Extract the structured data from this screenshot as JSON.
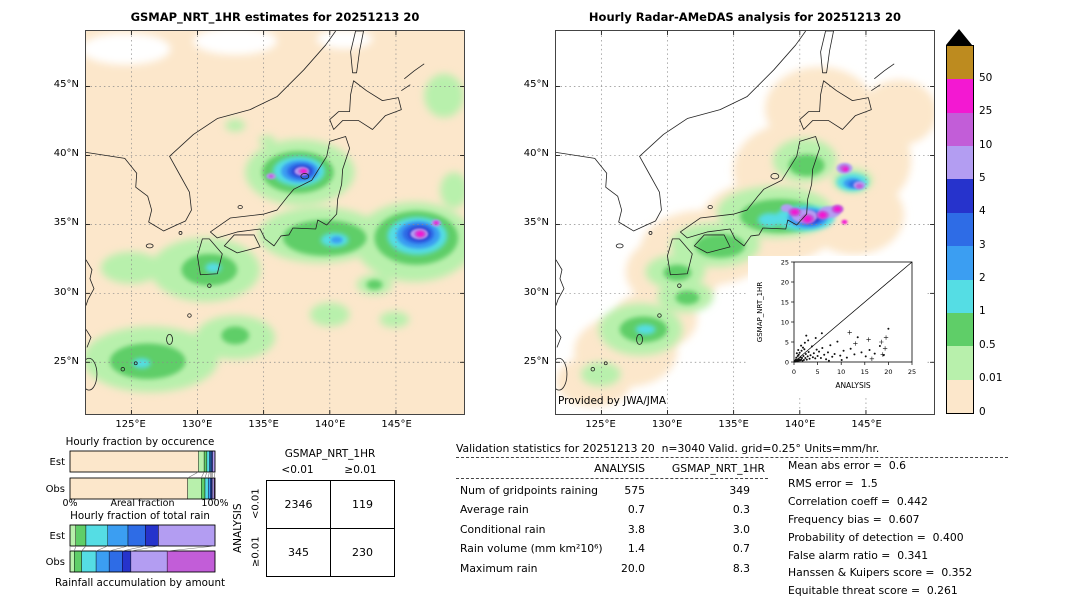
{
  "left_map": {
    "title": "GSMAP_NRT_1HR estimates for 20251213 20",
    "lat_ticks": [
      "45°N",
      "40°N",
      "35°N",
      "30°N",
      "25°N"
    ],
    "lon_ticks": [
      "125°E",
      "130°E",
      "135°E",
      "140°E",
      "145°E"
    ]
  },
  "right_map": {
    "title": "Hourly Radar-AMeDAS analysis for 20251213 20",
    "lat_ticks": [
      "45°N",
      "40°N",
      "35°N",
      "30°N",
      "25°N"
    ],
    "lon_ticks": [
      "125°E",
      "130°E",
      "135°E",
      "140°E",
      "145°E"
    ],
    "credit": "Provided by JWA/JMA"
  },
  "colorbar": {
    "labels": [
      "50",
      "25",
      "10",
      "5",
      "4",
      "3",
      "2",
      "1",
      "0.5",
      "0.01",
      "0"
    ],
    "colors_top_to_bottom": [
      "#bd8b1f",
      "#f318d2",
      "#c25dd8",
      "#b39df2",
      "#2633cc",
      "#2e6ce6",
      "#3b9ef2",
      "#55dde4",
      "#5fce68",
      "#b8f0ac",
      "#fce7cb"
    ],
    "over_arrow_color": "#000000",
    "units": "mm/hr"
  },
  "chart_data": [
    {
      "type": "scatter",
      "title": "GSMAP_NRT_1HR vs ANALYSIS inset",
      "xlabel": "ANALYSIS",
      "ylabel": "GSMAP_NRT_1HR",
      "xlim": [
        0,
        25
      ],
      "ylim": [
        0,
        25
      ],
      "xticks": [
        "0",
        "5",
        "10",
        "15",
        "20",
        "25"
      ],
      "yticks": [
        "0",
        "5",
        "10",
        "15",
        "20",
        "25"
      ],
      "identity_line": true,
      "dot_points": [
        [
          0.1,
          0.1
        ],
        [
          0.2,
          0.3
        ],
        [
          0.3,
          0.1
        ],
        [
          0.4,
          0.6
        ],
        [
          0.5,
          0.2
        ],
        [
          0.5,
          1.1
        ],
        [
          0.6,
          0.4
        ],
        [
          0.7,
          0.2
        ],
        [
          0.8,
          1.5
        ],
        [
          0.9,
          0.5
        ],
        [
          1.0,
          0.3
        ],
        [
          1.0,
          1.8
        ],
        [
          1.1,
          0.7
        ],
        [
          1.2,
          2.3
        ],
        [
          1.3,
          0.4
        ],
        [
          1.4,
          1.2
        ],
        [
          1.5,
          0.6
        ],
        [
          1.6,
          2.8
        ],
        [
          1.7,
          1.0
        ],
        [
          1.8,
          0.3
        ],
        [
          2.0,
          1.5
        ],
        [
          2.1,
          0.5
        ],
        [
          2.2,
          3.2
        ],
        [
          2.4,
          1.0
        ],
        [
          2.5,
          2.0
        ],
        [
          2.7,
          0.6
        ],
        [
          2.9,
          1.4
        ],
        [
          3.1,
          2.5
        ],
        [
          3.3,
          0.8
        ],
        [
          3.5,
          1.7
        ],
        [
          3.8,
          3.9
        ],
        [
          4.0,
          1.2
        ],
        [
          4.2,
          2.2
        ],
        [
          4.5,
          0.9
        ],
        [
          4.8,
          3.1
        ],
        [
          5.0,
          1.5
        ],
        [
          5.3,
          2.6
        ],
        [
          5.7,
          1.0
        ],
        [
          6.0,
          3.5
        ],
        [
          6.4,
          1.8
        ],
        [
          6.8,
          0.7
        ],
        [
          7.2,
          2.4
        ],
        [
          7.7,
          4.2
        ],
        [
          8.1,
          1.3
        ],
        [
          8.6,
          2.0
        ],
        [
          9.2,
          5.1
        ],
        [
          9.8,
          1.6
        ],
        [
          10.5,
          2.8
        ],
        [
          11.2,
          1.1
        ],
        [
          12.0,
          3.3
        ],
        [
          12.8,
          1.9
        ],
        [
          13.5,
          6.2
        ],
        [
          14.3,
          2.4
        ],
        [
          15.2,
          1.4
        ],
        [
          16.0,
          3.0
        ],
        [
          17.1,
          2.1
        ],
        [
          18.2,
          4.0
        ],
        [
          19.0,
          1.7
        ],
        [
          20.0,
          8.3
        ],
        [
          2.3,
          4.8
        ],
        [
          1.9,
          3.6
        ],
        [
          0.6,
          2.2
        ],
        [
          3.0,
          5.4
        ],
        [
          4.6,
          6.0
        ],
        [
          1.5,
          4.1
        ],
        [
          0.9,
          3.0
        ],
        [
          5.9,
          7.2
        ],
        [
          2.6,
          6.6
        ],
        [
          7.4,
          0.3
        ],
        [
          10.1,
          0.5
        ]
      ],
      "plus_points": [
        [
          13.0,
          4.6
        ],
        [
          15.8,
          5.6
        ],
        [
          18.5,
          5.0
        ],
        [
          19.5,
          6.1
        ],
        [
          18.8,
          1.9
        ],
        [
          16.5,
          0.8
        ],
        [
          19.3,
          3.4
        ],
        [
          11.8,
          7.4
        ]
      ]
    },
    {
      "type": "bar",
      "subtype": "stacked-horizontal-percent",
      "title": "Hourly fraction by occurence",
      "xlabel": "Areal fraction",
      "x_min_label": "0%",
      "x_max_label": "100%",
      "categories": [
        "Est",
        "Obs"
      ],
      "bins": [
        "0-0.01",
        "0.01-0.5",
        "0.5-1",
        "1-2",
        "2-3",
        "3-4",
        "4-5",
        "5-10",
        "10-25",
        "25-50",
        "50+"
      ],
      "series": [
        {
          "name": "Est",
          "values": [
            88.5,
            4.0,
            1.9,
            1.7,
            1.0,
            0.7,
            0.5,
            1.7,
            0,
            0,
            0
          ]
        },
        {
          "name": "Obs",
          "values": [
            81.1,
            9.4,
            2.6,
            2.2,
            1.4,
            0.9,
            0.5,
            1.3,
            0.6,
            0,
            0
          ]
        }
      ]
    },
    {
      "type": "bar",
      "subtype": "stacked-horizontal-percent",
      "title": "Hourly fraction of total rain",
      "caption": "Rainfall accumulation by amount",
      "categories": [
        "Est",
        "Obs"
      ],
      "bins": [
        "0-0.01",
        "0.01-0.5",
        "0.5-1",
        "1-2",
        "2-3",
        "3-4",
        "4-5",
        "5-10",
        "10-25",
        "25-50",
        "50+"
      ],
      "series": [
        {
          "name": "Est",
          "values": [
            0,
            4,
            7,
            15,
            14,
            12,
            9,
            39,
            0,
            0,
            0
          ]
        },
        {
          "name": "Obs",
          "values": [
            0,
            3,
            5,
            10,
            9,
            9,
            6,
            25,
            33,
            0,
            0
          ]
        }
      ]
    },
    {
      "type": "table",
      "name": "contingency_table",
      "col_group_label": "GSMAP_NRT_1HR",
      "row_group_label": "ANALYSIS",
      "col_headers": [
        "<0.01",
        "≥0.01"
      ],
      "row_headers": [
        "<0.01",
        "≥0.01"
      ],
      "values": [
        [
          "2346",
          "119"
        ],
        [
          "345",
          "230"
        ]
      ]
    },
    {
      "type": "table",
      "name": "validation_statistics",
      "title": "Validation statistics for 20251213 20  n=3040 Valid. grid=0.25° Units=mm/hr.",
      "col_headers": [
        "ANALYSIS",
        "GSMAP_NRT_1HR"
      ],
      "rows": [
        {
          "label": "Num of gridpoints raining",
          "values": [
            "575",
            "349"
          ]
        },
        {
          "label": "Average rain",
          "values": [
            "0.7",
            "0.3"
          ]
        },
        {
          "label": "Conditional rain",
          "values": [
            "3.8",
            "3.0"
          ]
        },
        {
          "label": "Rain volume (mm km²10⁶)",
          "values": [
            "1.4",
            "0.7"
          ]
        },
        {
          "label": "Maximum rain",
          "values": [
            "20.0",
            "8.3"
          ]
        }
      ],
      "scores": [
        {
          "label": "Mean abs error",
          "value": "0.6"
        },
        {
          "label": "RMS error",
          "value": "1.5"
        },
        {
          "label": "Correlation coeff",
          "value": "0.442"
        },
        {
          "label": "Frequency bias",
          "value": "0.607"
        },
        {
          "label": "Probability of detection",
          "value": "0.400"
        },
        {
          "label": "False alarm ratio",
          "value": "0.341"
        },
        {
          "label": "Hanssen & Kuipers score",
          "value": "0.352"
        },
        {
          "label": "Equitable threat score",
          "value": "0.261"
        }
      ]
    }
  ]
}
